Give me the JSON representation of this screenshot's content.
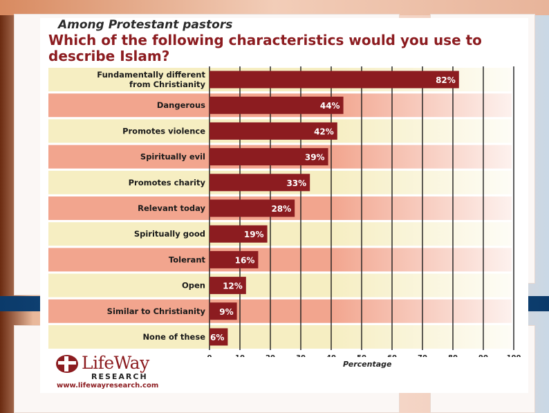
{
  "chart_data": {
    "type": "bar",
    "orientation": "horizontal",
    "subtitle": "Among Protestant pastors",
    "title": "Which of the following characteristics would you use to describe Islam?",
    "categories": [
      [
        "Fundamentally different",
        "from Christianity"
      ],
      [
        "Dangerous"
      ],
      [
        "Promotes violence"
      ],
      [
        "Spiritually evil"
      ],
      [
        "Promotes charity"
      ],
      [
        "Relevant today"
      ],
      [
        "Spiritually good"
      ],
      [
        "Tolerant"
      ],
      [
        "Open"
      ],
      [
        "Similar to Christianity"
      ],
      [
        "None of these"
      ]
    ],
    "values": [
      82,
      44,
      42,
      39,
      33,
      28,
      19,
      16,
      12,
      9,
      6
    ],
    "value_labels": [
      "82%",
      "44%",
      "42%",
      "39%",
      "33%",
      "28%",
      "19%",
      "16%",
      "12%",
      "9%",
      "6%"
    ],
    "xlabel": "Percentage",
    "xlim": [
      0,
      100
    ],
    "xticks": [
      0,
      10,
      20,
      30,
      40,
      50,
      60,
      70,
      80,
      90,
      100
    ],
    "grid": true,
    "legend": "none",
    "colors": {
      "bar": "#8c1c20",
      "row_a": "#f6eec2",
      "row_b": "#f2a58e",
      "title": "#8c1c20"
    }
  },
  "branding": {
    "logo_name": "LifeWay",
    "logo_sub": "RESEARCH",
    "url": "www.lifewayresearch.com"
  }
}
